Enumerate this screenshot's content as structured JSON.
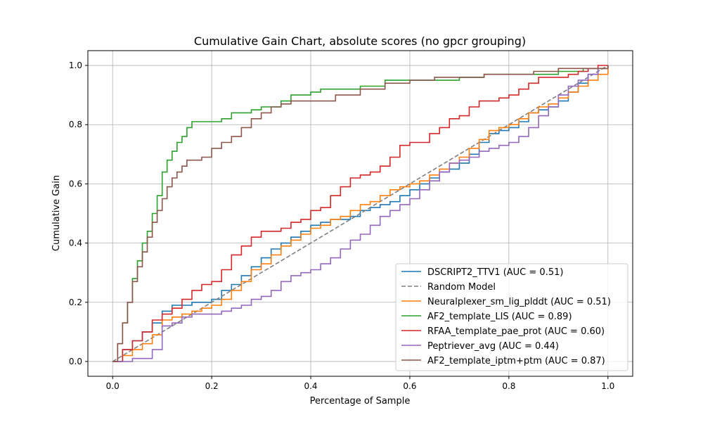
{
  "chart_data": {
    "type": "line",
    "title": "Cumulative Gain Chart, absolute scores (no gpcr grouping)",
    "xlabel": "Percentage of Sample",
    "ylabel": "Cumulative Gain",
    "xlim": [
      -0.05,
      1.05
    ],
    "ylim": [
      -0.05,
      1.05
    ],
    "xticks": [
      "0.0",
      "0.2",
      "0.4",
      "0.6",
      "0.8",
      "1.0"
    ],
    "yticks": [
      "0.0",
      "0.2",
      "0.4",
      "0.6",
      "0.8",
      "1.0"
    ],
    "grid": true,
    "legend_position": "lower right",
    "series": [
      {
        "name": "DSCRIPT2_TTV1 (AUC = 0.51)",
        "color": "#1f77b4",
        "dashed": false,
        "points": [
          [
            0,
            0
          ],
          [
            0.02,
            0.04
          ],
          [
            0.04,
            0.07
          ],
          [
            0.06,
            0.1
          ],
          [
            0.08,
            0.13
          ],
          [
            0.1,
            0.17
          ],
          [
            0.12,
            0.19
          ],
          [
            0.14,
            0.19
          ],
          [
            0.16,
            0.2
          ],
          [
            0.18,
            0.2
          ],
          [
            0.2,
            0.21
          ],
          [
            0.22,
            0.24
          ],
          [
            0.24,
            0.26
          ],
          [
            0.26,
            0.29
          ],
          [
            0.28,
            0.32
          ],
          [
            0.3,
            0.35
          ],
          [
            0.32,
            0.38
          ],
          [
            0.34,
            0.4
          ],
          [
            0.36,
            0.42
          ],
          [
            0.38,
            0.44
          ],
          [
            0.4,
            0.46
          ],
          [
            0.42,
            0.47
          ],
          [
            0.44,
            0.48
          ],
          [
            0.46,
            0.48
          ],
          [
            0.48,
            0.49
          ],
          [
            0.5,
            0.51
          ],
          [
            0.52,
            0.52
          ],
          [
            0.54,
            0.53
          ],
          [
            0.56,
            0.54
          ],
          [
            0.58,
            0.56
          ],
          [
            0.6,
            0.58
          ],
          [
            0.62,
            0.6
          ],
          [
            0.64,
            0.62
          ],
          [
            0.66,
            0.64
          ],
          [
            0.68,
            0.65
          ],
          [
            0.7,
            0.67
          ],
          [
            0.72,
            0.7
          ],
          [
            0.74,
            0.74
          ],
          [
            0.76,
            0.77
          ],
          [
            0.78,
            0.78
          ],
          [
            0.8,
            0.79
          ],
          [
            0.82,
            0.81
          ],
          [
            0.84,
            0.84
          ],
          [
            0.86,
            0.85
          ],
          [
            0.88,
            0.86
          ],
          [
            0.9,
            0.88
          ],
          [
            0.92,
            0.91
          ],
          [
            0.94,
            0.94
          ],
          [
            0.96,
            0.97
          ],
          [
            0.98,
            0.99
          ],
          [
            1.0,
            1.0
          ]
        ]
      },
      {
        "name": "Random Model",
        "color": "#7f7f7f",
        "dashed": true,
        "points": [
          [
            0,
            0
          ],
          [
            1,
            1
          ]
        ]
      },
      {
        "name": "Neuralplexer_sm_lig_plddt (AUC = 0.51)",
        "color": "#ff7f0e",
        "dashed": false,
        "points": [
          [
            0,
            0
          ],
          [
            0.02,
            0.02
          ],
          [
            0.04,
            0.04
          ],
          [
            0.06,
            0.06
          ],
          [
            0.08,
            0.09
          ],
          [
            0.1,
            0.14
          ],
          [
            0.12,
            0.15
          ],
          [
            0.14,
            0.16
          ],
          [
            0.16,
            0.17
          ],
          [
            0.18,
            0.18
          ],
          [
            0.2,
            0.19
          ],
          [
            0.22,
            0.21
          ],
          [
            0.24,
            0.24
          ],
          [
            0.26,
            0.27
          ],
          [
            0.28,
            0.31
          ],
          [
            0.3,
            0.33
          ],
          [
            0.32,
            0.36
          ],
          [
            0.34,
            0.39
          ],
          [
            0.36,
            0.41
          ],
          [
            0.38,
            0.43
          ],
          [
            0.4,
            0.45
          ],
          [
            0.42,
            0.46
          ],
          [
            0.44,
            0.48
          ],
          [
            0.46,
            0.49
          ],
          [
            0.48,
            0.51
          ],
          [
            0.5,
            0.53
          ],
          [
            0.52,
            0.54
          ],
          [
            0.54,
            0.56
          ],
          [
            0.56,
            0.58
          ],
          [
            0.58,
            0.59
          ],
          [
            0.6,
            0.6
          ],
          [
            0.62,
            0.61
          ],
          [
            0.64,
            0.63
          ],
          [
            0.66,
            0.65
          ],
          [
            0.68,
            0.67
          ],
          [
            0.7,
            0.69
          ],
          [
            0.72,
            0.72
          ],
          [
            0.74,
            0.75
          ],
          [
            0.76,
            0.78
          ],
          [
            0.78,
            0.79
          ],
          [
            0.8,
            0.8
          ],
          [
            0.82,
            0.82
          ],
          [
            0.84,
            0.84
          ],
          [
            0.86,
            0.86
          ],
          [
            0.88,
            0.87
          ],
          [
            0.9,
            0.89
          ],
          [
            0.92,
            0.91
          ],
          [
            0.94,
            0.93
          ],
          [
            0.96,
            0.95
          ],
          [
            0.98,
            0.97
          ],
          [
            1.0,
            1.0
          ]
        ]
      },
      {
        "name": "AF2_template_LIS (AUC = 0.89)",
        "color": "#2ca02c",
        "dashed": false,
        "points": [
          [
            0,
            0
          ],
          [
            0.01,
            0.06
          ],
          [
            0.02,
            0.13
          ],
          [
            0.03,
            0.2
          ],
          [
            0.04,
            0.28
          ],
          [
            0.05,
            0.34
          ],
          [
            0.06,
            0.4
          ],
          [
            0.07,
            0.44
          ],
          [
            0.08,
            0.5
          ],
          [
            0.09,
            0.56
          ],
          [
            0.1,
            0.64
          ],
          [
            0.11,
            0.68
          ],
          [
            0.12,
            0.71
          ],
          [
            0.13,
            0.74
          ],
          [
            0.14,
            0.76
          ],
          [
            0.15,
            0.79
          ],
          [
            0.16,
            0.81
          ],
          [
            0.2,
            0.81
          ],
          [
            0.22,
            0.82
          ],
          [
            0.24,
            0.84
          ],
          [
            0.26,
            0.84
          ],
          [
            0.28,
            0.85
          ],
          [
            0.3,
            0.86
          ],
          [
            0.34,
            0.88
          ],
          [
            0.36,
            0.9
          ],
          [
            0.38,
            0.9
          ],
          [
            0.4,
            0.91
          ],
          [
            0.42,
            0.92
          ],
          [
            0.5,
            0.93
          ],
          [
            0.55,
            0.95
          ],
          [
            0.6,
            0.95
          ],
          [
            0.7,
            0.96
          ],
          [
            0.75,
            0.97
          ],
          [
            0.8,
            0.97
          ],
          [
            0.85,
            0.97
          ],
          [
            0.9,
            0.98
          ],
          [
            0.95,
            0.99
          ],
          [
            1.0,
            1.0
          ]
        ]
      },
      {
        "name": "RFAA_template_pae_prot (AUC = 0.60)",
        "color": "#d62728",
        "dashed": false,
        "points": [
          [
            0,
            0
          ],
          [
            0.02,
            0.04
          ],
          [
            0.04,
            0.07
          ],
          [
            0.06,
            0.1
          ],
          [
            0.08,
            0.14
          ],
          [
            0.1,
            0.16
          ],
          [
            0.12,
            0.18
          ],
          [
            0.14,
            0.21
          ],
          [
            0.16,
            0.24
          ],
          [
            0.18,
            0.26
          ],
          [
            0.2,
            0.27
          ],
          [
            0.22,
            0.31
          ],
          [
            0.24,
            0.36
          ],
          [
            0.26,
            0.39
          ],
          [
            0.28,
            0.42
          ],
          [
            0.3,
            0.44
          ],
          [
            0.32,
            0.44
          ],
          [
            0.34,
            0.45
          ],
          [
            0.36,
            0.47
          ],
          [
            0.38,
            0.48
          ],
          [
            0.4,
            0.51
          ],
          [
            0.42,
            0.52
          ],
          [
            0.44,
            0.56
          ],
          [
            0.46,
            0.59
          ],
          [
            0.48,
            0.62
          ],
          [
            0.5,
            0.63
          ],
          [
            0.52,
            0.64
          ],
          [
            0.54,
            0.66
          ],
          [
            0.56,
            0.69
          ],
          [
            0.58,
            0.73
          ],
          [
            0.6,
            0.74
          ],
          [
            0.62,
            0.74
          ],
          [
            0.64,
            0.77
          ],
          [
            0.66,
            0.79
          ],
          [
            0.68,
            0.82
          ],
          [
            0.7,
            0.83
          ],
          [
            0.72,
            0.86
          ],
          [
            0.74,
            0.88
          ],
          [
            0.76,
            0.88
          ],
          [
            0.78,
            0.89
          ],
          [
            0.8,
            0.9
          ],
          [
            0.82,
            0.92
          ],
          [
            0.84,
            0.94
          ],
          [
            0.86,
            0.96
          ],
          [
            0.88,
            0.96
          ],
          [
            0.9,
            0.96
          ],
          [
            0.92,
            0.97
          ],
          [
            0.94,
            0.98
          ],
          [
            0.96,
            0.99
          ],
          [
            0.98,
            1.0
          ],
          [
            1.0,
            1.0
          ]
        ]
      },
      {
        "name": "Peptriever_avg (AUC = 0.44)",
        "color": "#9467bd",
        "dashed": false,
        "points": [
          [
            0,
            0
          ],
          [
            0.02,
            0.0
          ],
          [
            0.04,
            0.01
          ],
          [
            0.06,
            0.01
          ],
          [
            0.08,
            0.04
          ],
          [
            0.1,
            0.12
          ],
          [
            0.12,
            0.13
          ],
          [
            0.14,
            0.15
          ],
          [
            0.16,
            0.16
          ],
          [
            0.18,
            0.16
          ],
          [
            0.2,
            0.16
          ],
          [
            0.22,
            0.17
          ],
          [
            0.24,
            0.18
          ],
          [
            0.26,
            0.19
          ],
          [
            0.28,
            0.21
          ],
          [
            0.3,
            0.22
          ],
          [
            0.32,
            0.24
          ],
          [
            0.34,
            0.27
          ],
          [
            0.36,
            0.29
          ],
          [
            0.38,
            0.3
          ],
          [
            0.4,
            0.31
          ],
          [
            0.42,
            0.33
          ],
          [
            0.44,
            0.35
          ],
          [
            0.46,
            0.38
          ],
          [
            0.48,
            0.41
          ],
          [
            0.5,
            0.43
          ],
          [
            0.52,
            0.46
          ],
          [
            0.54,
            0.49
          ],
          [
            0.56,
            0.51
          ],
          [
            0.58,
            0.53
          ],
          [
            0.6,
            0.55
          ],
          [
            0.62,
            0.58
          ],
          [
            0.64,
            0.61
          ],
          [
            0.66,
            0.64
          ],
          [
            0.68,
            0.67
          ],
          [
            0.7,
            0.68
          ],
          [
            0.72,
            0.69
          ],
          [
            0.74,
            0.71
          ],
          [
            0.76,
            0.72
          ],
          [
            0.78,
            0.73
          ],
          [
            0.8,
            0.74
          ],
          [
            0.82,
            0.76
          ],
          [
            0.84,
            0.79
          ],
          [
            0.86,
            0.83
          ],
          [
            0.88,
            0.86
          ],
          [
            0.9,
            0.9
          ],
          [
            0.92,
            0.93
          ],
          [
            0.94,
            0.95
          ],
          [
            0.96,
            0.97
          ],
          [
            0.98,
            0.99
          ],
          [
            1.0,
            1.0
          ]
        ]
      },
      {
        "name": "AF2_template_iptm+ptm (AUC = 0.87)",
        "color": "#8c564b",
        "dashed": false,
        "points": [
          [
            0,
            0
          ],
          [
            0.01,
            0.06
          ],
          [
            0.02,
            0.13
          ],
          [
            0.03,
            0.2
          ],
          [
            0.04,
            0.27
          ],
          [
            0.05,
            0.32
          ],
          [
            0.06,
            0.37
          ],
          [
            0.07,
            0.42
          ],
          [
            0.08,
            0.47
          ],
          [
            0.09,
            0.51
          ],
          [
            0.1,
            0.55
          ],
          [
            0.11,
            0.59
          ],
          [
            0.12,
            0.62
          ],
          [
            0.13,
            0.64
          ],
          [
            0.14,
            0.66
          ],
          [
            0.15,
            0.68
          ],
          [
            0.16,
            0.68
          ],
          [
            0.18,
            0.69
          ],
          [
            0.2,
            0.72
          ],
          [
            0.22,
            0.74
          ],
          [
            0.24,
            0.76
          ],
          [
            0.26,
            0.79
          ],
          [
            0.28,
            0.82
          ],
          [
            0.3,
            0.84
          ],
          [
            0.32,
            0.86
          ],
          [
            0.34,
            0.87
          ],
          [
            0.36,
            0.88
          ],
          [
            0.4,
            0.88
          ],
          [
            0.45,
            0.9
          ],
          [
            0.5,
            0.92
          ],
          [
            0.55,
            0.94
          ],
          [
            0.6,
            0.95
          ],
          [
            0.65,
            0.96
          ],
          [
            0.7,
            0.96
          ],
          [
            0.75,
            0.97
          ],
          [
            0.8,
            0.97
          ],
          [
            0.85,
            0.98
          ],
          [
            0.9,
            0.99
          ],
          [
            0.95,
            0.99
          ],
          [
            1.0,
            1.0
          ]
        ]
      }
    ]
  }
}
